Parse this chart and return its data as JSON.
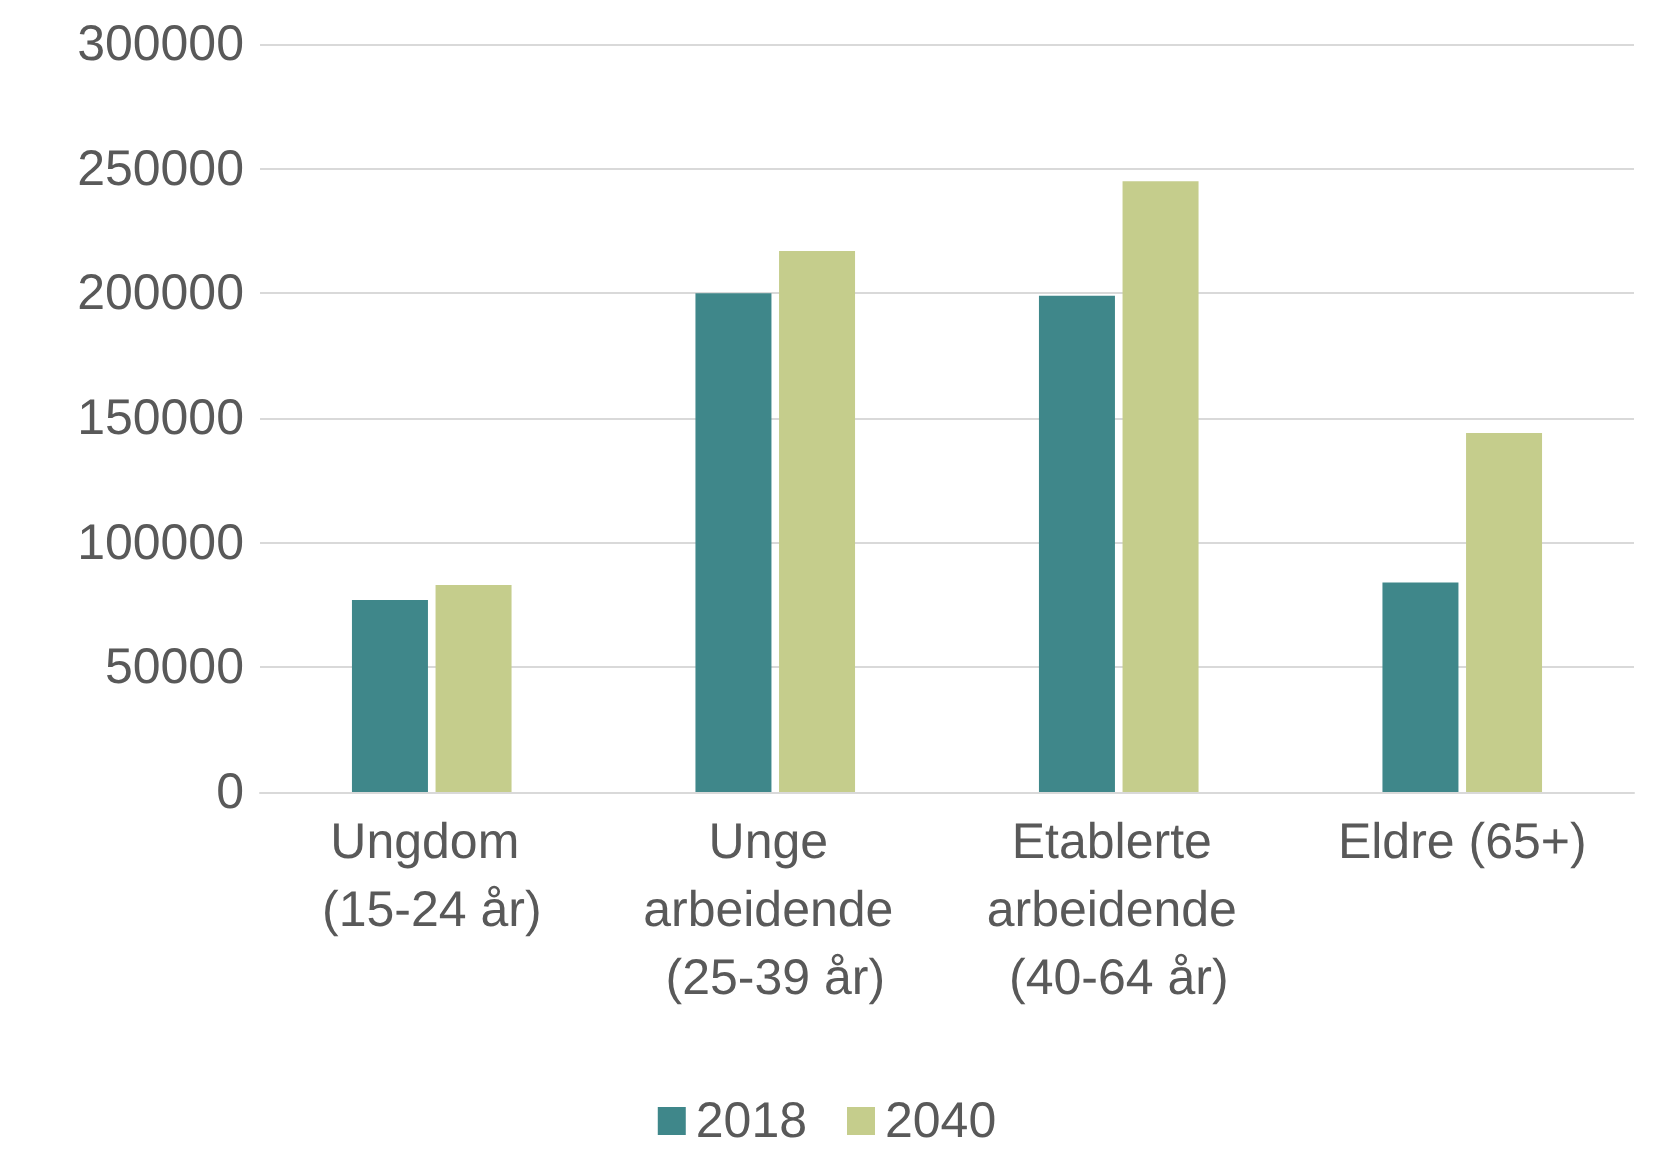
{
  "chart_data": {
    "type": "bar",
    "categories": [
      "Ungdom (15-24 år)",
      "Unge arbeidende (25-39 år)",
      "Etablerte arbeidende (40-64 år)",
      "Eldre (65+)"
    ],
    "series": [
      {
        "name": "2018",
        "color": "#3f878a",
        "values": [
          77000,
          200000,
          199000,
          84000
        ]
      },
      {
        "name": "2040",
        "color": "#c5cd8c",
        "values": [
          83000,
          217000,
          245000,
          144000
        ]
      }
    ],
    "ylim": [
      0,
      300000
    ],
    "yticks": [
      0,
      50000,
      100000,
      150000,
      200000,
      250000,
      300000
    ],
    "grid": "y",
    "legend": "bottom"
  }
}
